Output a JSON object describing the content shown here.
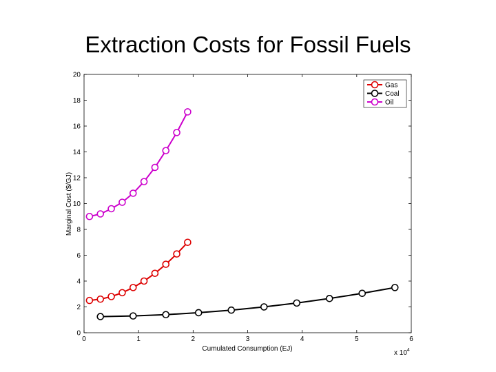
{
  "slide": {
    "title": "Extraction Costs for Fossil Fuels"
  },
  "chart_data": {
    "type": "line",
    "title": "",
    "xlabel": "Cumulated Consumption (EJ)",
    "ylabel": "Marginal Cost ($/GJ)",
    "x_multiplier_base": "x 10",
    "x_multiplier_exp": "4",
    "xlim": [
      0,
      6
    ],
    "ylim": [
      0,
      20
    ],
    "xticks": [
      "0",
      "1",
      "2",
      "3",
      "4",
      "5",
      "6"
    ],
    "yticks": [
      "0",
      "2",
      "4",
      "6",
      "8",
      "10",
      "12",
      "14",
      "16",
      "18",
      "20"
    ],
    "grid": false,
    "legend_position": "top-right",
    "series": [
      {
        "name": "Gas",
        "color": "#dd0000",
        "marker": "circle",
        "x": [
          0.1,
          0.3,
          0.5,
          0.7,
          0.9,
          1.1,
          1.3,
          1.5,
          1.7,
          1.9
        ],
        "y": [
          2.5,
          2.6,
          2.8,
          3.1,
          3.5,
          4.0,
          4.6,
          5.3,
          6.1,
          7.0
        ]
      },
      {
        "name": "Coal",
        "color": "#000000",
        "marker": "circle",
        "x": [
          0.3,
          0.9,
          1.5,
          2.1,
          2.7,
          3.3,
          3.9,
          4.5,
          5.1,
          5.7
        ],
        "y": [
          1.25,
          1.3,
          1.4,
          1.55,
          1.75,
          2.0,
          2.3,
          2.65,
          3.05,
          3.5
        ]
      },
      {
        "name": "Oil",
        "color": "#cc00cc",
        "marker": "circle",
        "x": [
          0.1,
          0.3,
          0.5,
          0.7,
          0.9,
          1.1,
          1.3,
          1.5,
          1.7,
          1.9
        ],
        "y": [
          9.0,
          9.2,
          9.6,
          10.1,
          10.8,
          11.7,
          12.8,
          14.1,
          15.5,
          17.1
        ]
      }
    ]
  }
}
